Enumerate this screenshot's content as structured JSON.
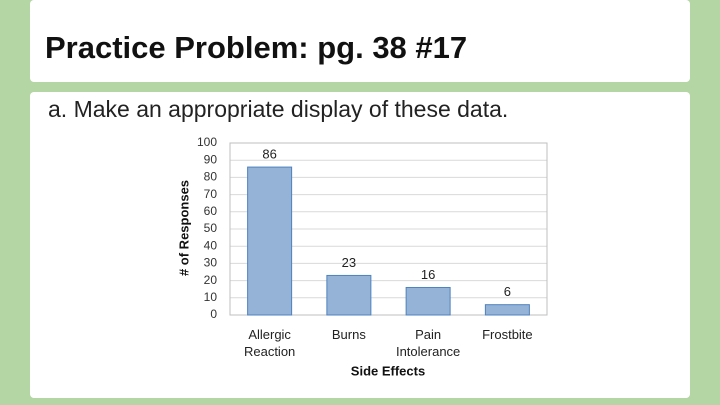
{
  "header": {
    "title": "Practice Problem: pg. 38 #17"
  },
  "body": {
    "text": "a. Make an appropriate display of these data."
  },
  "chart_data": {
    "type": "bar",
    "x_label": "Side Effects",
    "y_label": "# of Responses",
    "categories": [
      "Allergic Reaction",
      "Burns",
      "Pain Intolerance",
      "Frostbite"
    ],
    "values": [
      86,
      23,
      16,
      6
    ],
    "color": "#95b3d7",
    "ylim": [
      0,
      100
    ],
    "yticks": [
      0,
      10,
      20,
      30,
      40,
      50,
      60,
      70,
      80,
      90,
      100
    ],
    "grid": true
  }
}
